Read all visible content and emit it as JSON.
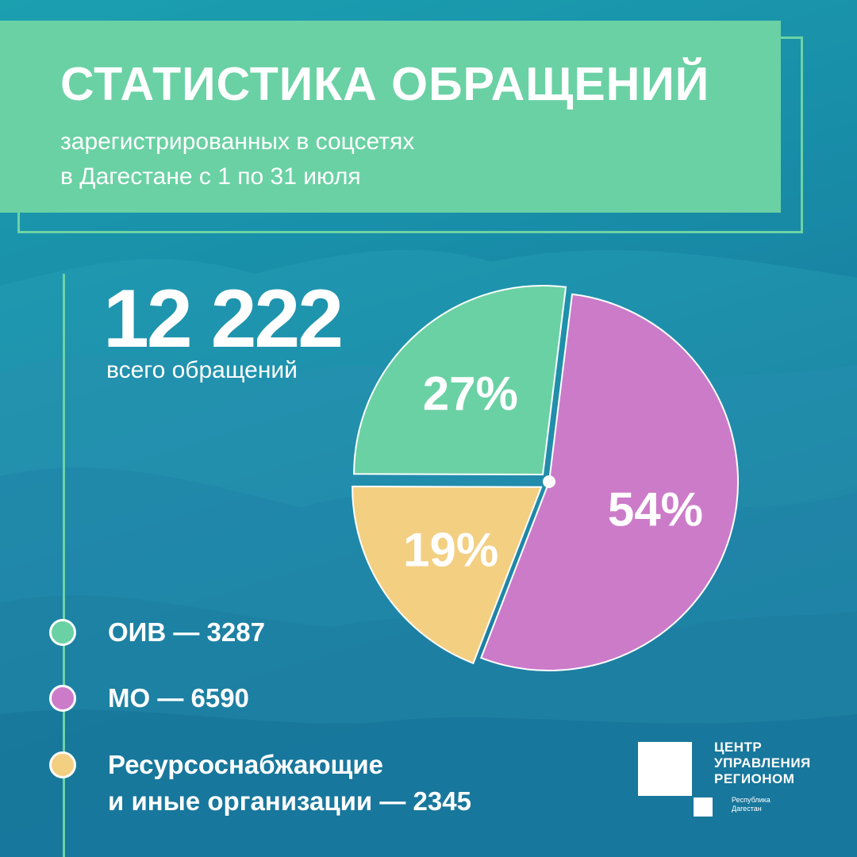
{
  "header": {
    "title": "СТАТИСТИКА ОБРАЩЕНИЙ",
    "subtitle_line1": "зарегистрированных в соцсетях",
    "subtitle_line2": "в Дагестане с 1 по 31 июля"
  },
  "total": {
    "value": "12 222",
    "label": "всего обращений"
  },
  "legend": [
    {
      "text": "ОИВ — 3287",
      "color": "#6ad1a4"
    },
    {
      "text": "МО — 6590",
      "color": "#cc7bc9"
    },
    {
      "text_line1": "Ресурсоснабжающие",
      "text_line2": "и иные организации — 2345",
      "color": "#f3cf82"
    }
  ],
  "logo": {
    "line1": "ЦЕНТР",
    "line2": "УПРАВЛЕНИЯ",
    "line3": "РЕГИОНОМ",
    "sub_line1": "Республика",
    "sub_line2": "Дагестан"
  },
  "colors": {
    "bg_top": "#1a9aae",
    "bg_bottom": "#136f92",
    "accent": "#6ad1a4"
  },
  "chart_data": {
    "type": "pie",
    "title": "",
    "slices": [
      {
        "label": "ОИВ",
        "value": 3287,
        "percent_label": "27%",
        "color": "#6ad1a4",
        "exploded": true
      },
      {
        "label": "МО",
        "value": 6590,
        "percent_label": "54%",
        "color": "#cc7bc9",
        "exploded": false
      },
      {
        "label": "Ресурсоснабжающие и иные организации",
        "value": 2345,
        "percent_label": "19%",
        "color": "#f3cf82",
        "exploded": true
      }
    ],
    "total": 12222,
    "legend_position": "bottom-left"
  }
}
